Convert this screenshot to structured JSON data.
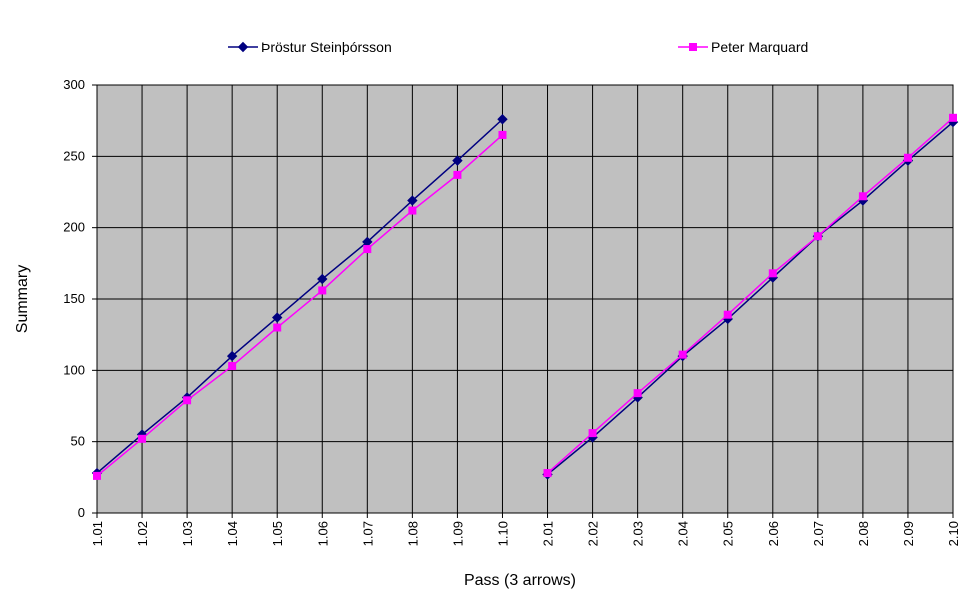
{
  "chart_data": {
    "type": "line",
    "xlabel": "Pass (3 arrows)",
    "ylabel": "Summary",
    "ylim": [
      0,
      300
    ],
    "yticks": [
      0,
      50,
      100,
      150,
      200,
      250,
      300
    ],
    "grid": true,
    "legend_position": "top",
    "plot_background": "#c0c0c0",
    "categories": [
      "1.01",
      "1.02",
      "1.03",
      "1.04",
      "1.05",
      "1.06",
      "1.07",
      "1.08",
      "1.09",
      "1.10",
      "2.01",
      "2.02",
      "2.03",
      "2.04",
      "2.05",
      "2.06",
      "2.07",
      "2.08",
      "2.09",
      "2.10"
    ],
    "series": [
      {
        "name": "Þröstur Steinþórsson",
        "color": "#000080",
        "marker": "diamond",
        "values": [
          28,
          55,
          81,
          110,
          137,
          164,
          190,
          219,
          247,
          276,
          27,
          53,
          81,
          110,
          136,
          165,
          194,
          219,
          247,
          274
        ]
      },
      {
        "name": "Peter Marquard",
        "color": "#ff00ff",
        "marker": "square",
        "values": [
          26,
          52,
          79,
          103,
          130,
          156,
          185,
          212,
          237,
          265,
          28,
          56,
          84,
          111,
          139,
          168,
          194,
          222,
          249,
          277
        ]
      }
    ]
  }
}
